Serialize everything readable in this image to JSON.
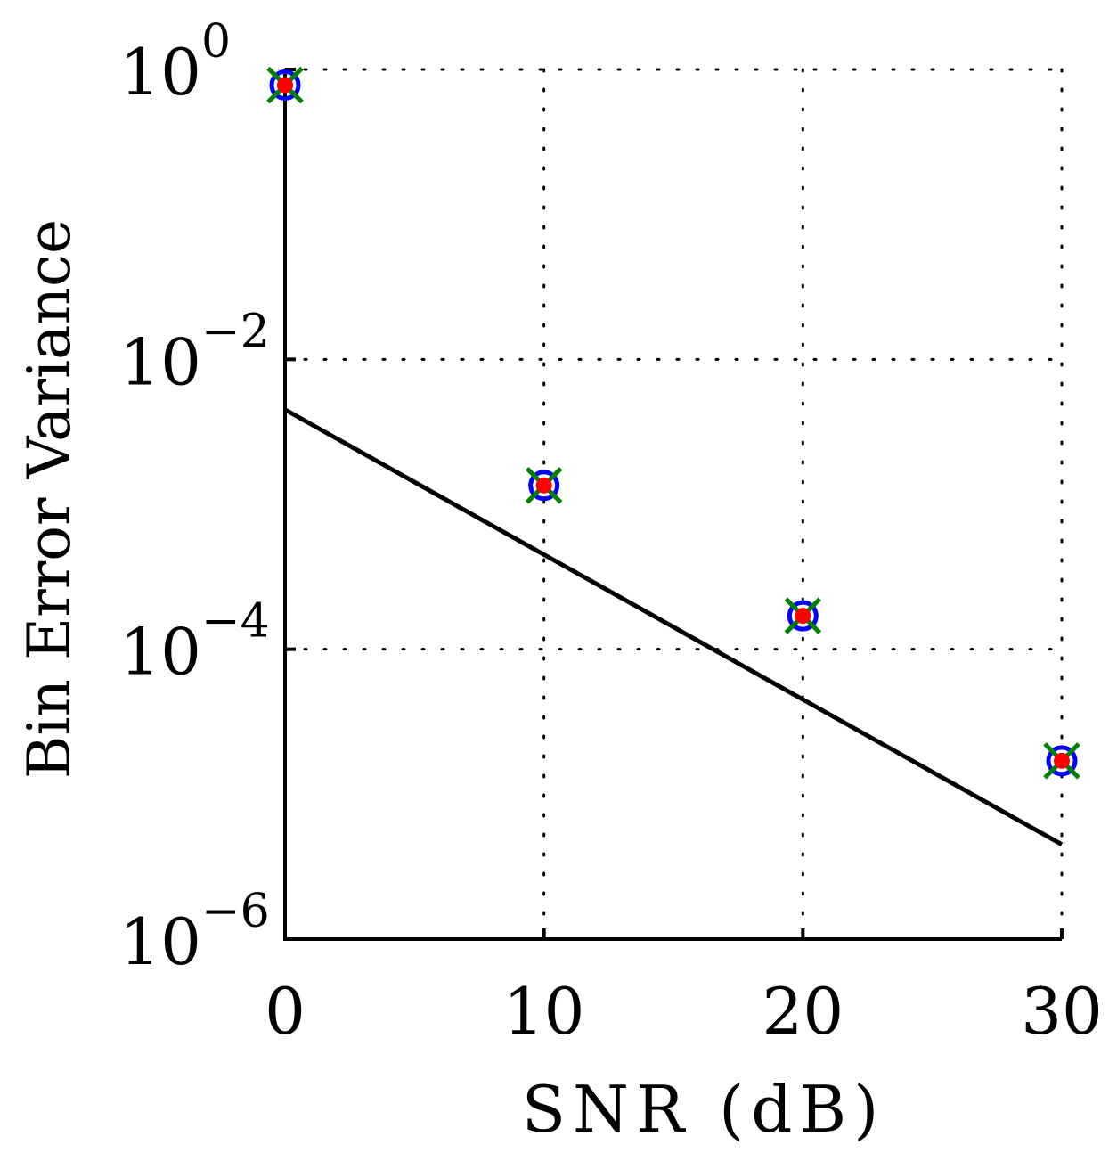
{
  "chart_data": {
    "type": "scatter",
    "title": "",
    "xlabel": "SNR (dB)",
    "ylabel": "Bin Error Variance",
    "xlim": [
      0,
      30
    ],
    "ylim": [
      1e-06,
      1
    ],
    "yscale": "log",
    "x_ticks": [
      0,
      10,
      20,
      30
    ],
    "x_tick_labels": [
      "0",
      "10",
      "20",
      "30"
    ],
    "y_ticks": [
      1e-06,
      0.0001,
      0.01,
      1
    ],
    "y_tick_labels": [
      {
        "base": "10",
        "exp": "−6"
      },
      {
        "base": "10",
        "exp": "−4"
      },
      {
        "base": "10",
        "exp": "−2"
      },
      {
        "base": "10",
        "exp": "0"
      }
    ],
    "grid": true,
    "series": [
      {
        "name": "bound",
        "style": "line",
        "color": "#000000",
        "x": [
          0,
          30
        ],
        "y": [
          0.0045,
          4.5e-06
        ]
      },
      {
        "name": "circles",
        "style": "marker-circle",
        "color": "#0000ff",
        "x": [
          0,
          10,
          20,
          30
        ],
        "y": [
          0.78,
          0.00135,
          0.00017,
          1.7e-05
        ]
      },
      {
        "name": "crosses",
        "style": "marker-x",
        "color": "#008000",
        "x": [
          0,
          10,
          20,
          30
        ],
        "y": [
          0.78,
          0.00135,
          0.00017,
          1.7e-05
        ]
      },
      {
        "name": "dots",
        "style": "marker-dot",
        "color": "#ff0000",
        "x": [
          0,
          10,
          20,
          30
        ],
        "y": [
          0.78,
          0.00135,
          0.00017,
          1.7e-05
        ]
      }
    ]
  }
}
